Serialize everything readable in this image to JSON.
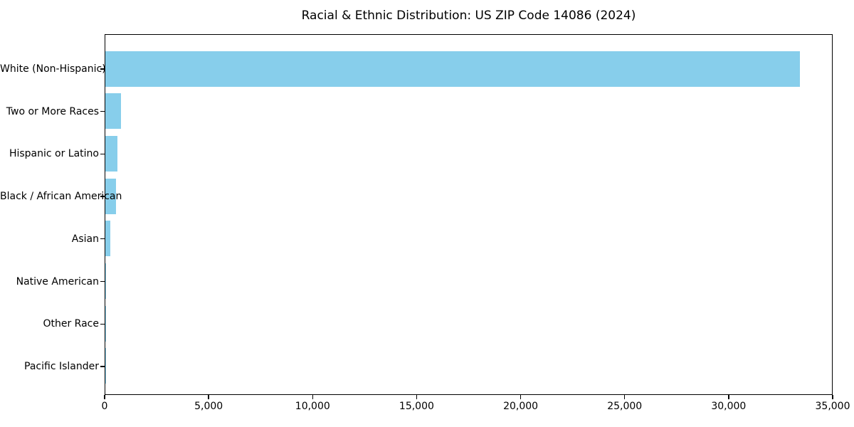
{
  "chart_data": {
    "type": "bar",
    "orientation": "horizontal",
    "title": "Racial & Ethnic Distribution: US ZIP Code 14086 (2024)",
    "categories": [
      "White (Non-Hispanic)",
      "Two or More Races",
      "Hispanic or Latino",
      "Black / African American",
      "Asian",
      "Native American",
      "Other Race",
      "Pacific Islander"
    ],
    "values": [
      33400,
      760,
      580,
      500,
      240,
      40,
      20,
      10
    ],
    "xlabel": "",
    "ylabel": "",
    "xlim": [
      0,
      35000
    ],
    "x_ticks": [
      0,
      5000,
      10000,
      15000,
      20000,
      25000,
      30000,
      35000
    ],
    "x_tick_labels": [
      "0",
      "5,000",
      "10,000",
      "15,000",
      "20,000",
      "25,000",
      "30,000",
      "35,000"
    ],
    "bar_color": "#87CEEB",
    "text_color": "#000000",
    "grid": false,
    "legend_position": "none"
  }
}
